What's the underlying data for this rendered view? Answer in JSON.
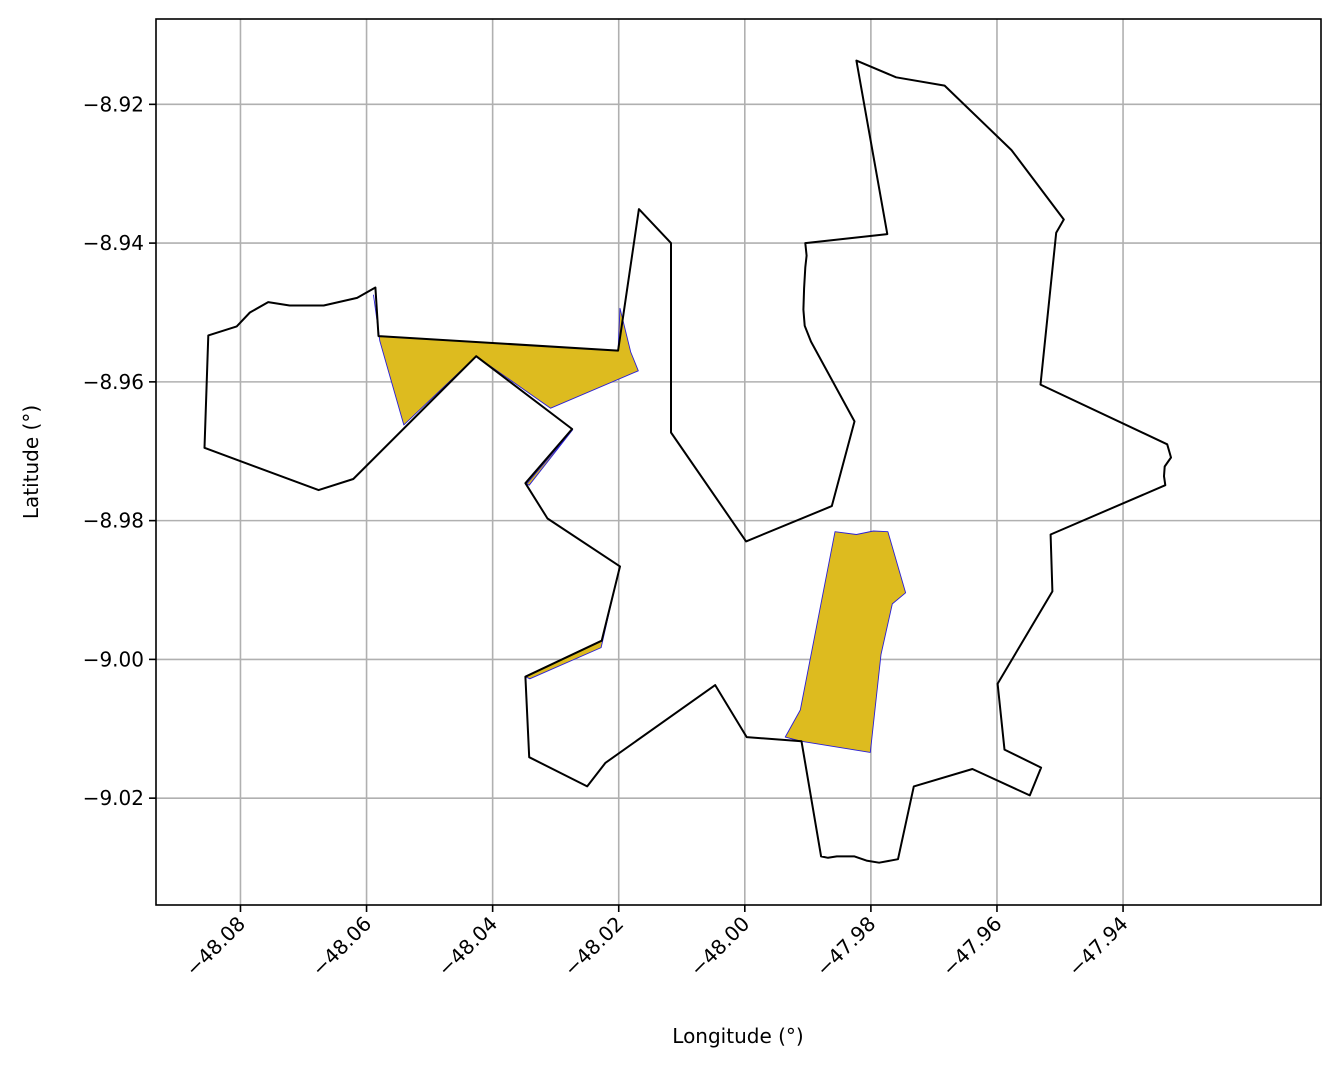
{
  "chart_data": {
    "type": "map",
    "title": "",
    "xlabel": "Longitude (°)",
    "ylabel": "Latitude (°)",
    "xlim": [
      -48.0934,
      -47.9086
    ],
    "ylim": [
      -9.0354,
      -8.9077
    ],
    "grid": true,
    "x_ticks": [
      -48.08,
      -48.06,
      -48.04,
      -48.02,
      -48.0,
      -47.98,
      -47.96,
      -47.94
    ],
    "x_tick_labels": [
      "−48.08",
      "−48.06",
      "−48.04",
      "−48.02",
      "−48.00",
      "−47.98",
      "−47.96",
      "−47.94"
    ],
    "y_ticks": [
      -8.92,
      -8.94,
      -8.96,
      -8.98,
      -9.0,
      -9.02
    ],
    "y_tick_labels": [
      "−8.92",
      "−8.94",
      "−8.96",
      "−8.98",
      "−9.00",
      "−9.02"
    ],
    "colors": {
      "boundary": "#000000",
      "highlight_fill": "#DDBB1F",
      "highlight_edge": "#2a1fd6",
      "grid": "#b0b0b0"
    },
    "boundary": [
      [
        -48.0586,
        -8.9464
      ],
      [
        -48.0581,
        -8.9534
      ],
      [
        -48.0201,
        -8.9555
      ],
      [
        -48.0168,
        -8.9351
      ],
      [
        -48.0117,
        -8.94
      ],
      [
        -48.0117,
        -8.9673
      ],
      [
        -47.9998,
        -8.983
      ],
      [
        -47.9862,
        -8.9779
      ],
      [
        -47.9826,
        -8.9657
      ],
      [
        -47.9895,
        -8.9542
      ],
      [
        -47.9905,
        -8.9519
      ],
      [
        -47.9907,
        -8.9496
      ],
      [
        -47.9906,
        -8.9465
      ],
      [
        -47.9904,
        -8.9435
      ],
      [
        -47.9902,
        -8.9418
      ],
      [
        -47.9904,
        -8.94
      ],
      [
        -47.9774,
        -8.9387
      ],
      [
        -47.9823,
        -8.9137
      ],
      [
        -47.976,
        -8.9161
      ],
      [
        -47.9683,
        -8.9173
      ],
      [
        -47.9577,
        -8.9266
      ],
      [
        -47.9494,
        -8.9366
      ],
      [
        -47.9506,
        -8.9385
      ],
      [
        -47.9531,
        -8.9604
      ],
      [
        -47.933,
        -8.969
      ],
      [
        -47.9324,
        -8.9709
      ],
      [
        -47.9334,
        -8.9722
      ],
      [
        -47.9335,
        -8.9736
      ],
      [
        -47.9333,
        -8.9749
      ],
      [
        -47.9515,
        -8.982
      ],
      [
        -47.9512,
        -8.9902
      ],
      [
        -47.9599,
        -9.0035
      ],
      [
        -47.9588,
        -9.013
      ],
      [
        -47.953,
        -9.0156
      ],
      [
        -47.9548,
        -9.0196
      ],
      [
        -47.9639,
        -9.0158
      ],
      [
        -47.9732,
        -9.0183
      ],
      [
        -47.9757,
        -9.0288
      ],
      [
        -47.9787,
        -9.0293
      ],
      [
        -47.9807,
        -9.029
      ],
      [
        -47.9826,
        -9.0284
      ],
      [
        -47.9854,
        -9.0284
      ],
      [
        -47.9868,
        -9.0286
      ],
      [
        -47.9879,
        -9.0284
      ],
      [
        -47.991,
        -9.0118
      ],
      [
        -47.9997,
        -9.0112
      ],
      [
        -48.0047,
        -9.0037
      ],
      [
        -48.0221,
        -9.0149
      ],
      [
        -48.025,
        -9.0183
      ],
      [
        -48.0342,
        -9.0141
      ],
      [
        -48.0348,
        -9.0025
      ],
      [
        -48.0227,
        -8.9973
      ],
      [
        -48.0198,
        -8.9866
      ],
      [
        -48.0313,
        -8.9797
      ],
      [
        -48.0348,
        -8.9746
      ],
      [
        -48.0274,
        -8.9668
      ],
      [
        -48.0426,
        -8.9563
      ],
      [
        -48.0621,
        -8.974
      ],
      [
        -48.0676,
        -8.9756
      ],
      [
        -48.0857,
        -8.9695
      ],
      [
        -48.0851,
        -8.9533
      ],
      [
        -48.0806,
        -8.952
      ],
      [
        -48.0785,
        -8.95
      ],
      [
        -48.0756,
        -8.9485
      ],
      [
        -48.0722,
        -8.949
      ],
      [
        -48.0668,
        -8.949
      ],
      [
        -48.0615,
        -8.9479
      ],
      [
        -48.0586,
        -8.9464
      ]
    ],
    "highlighted_regions": [
      [
        [
          -48.0589,
          -8.9475
        ],
        [
          -48.058,
          -8.9534
        ],
        [
          -48.0201,
          -8.9555
        ],
        [
          -48.0198,
          -8.9494
        ],
        [
          -48.0181,
          -8.9557
        ],
        [
          -48.0169,
          -8.9584
        ],
        [
          -48.0308,
          -8.9638
        ],
        [
          -48.0426,
          -8.9563
        ],
        [
          -48.0541,
          -8.9662
        ],
        [
          -48.0579,
          -8.9541
        ],
        [
          -48.0589,
          -8.9475
        ]
      ],
      [
        [
          -48.0199,
          -8.9868
        ],
        [
          -48.0227,
          -8.9973
        ],
        [
          -48.0348,
          -9.0025
        ],
        [
          -48.0341,
          -9.0028
        ],
        [
          -48.0228,
          -8.9983
        ],
        [
          -48.0199,
          -8.9868
        ]
      ],
      [
        [
          -48.0346,
          -8.9747
        ],
        [
          -48.0342,
          -8.9749
        ],
        [
          -48.0273,
          -8.9669
        ],
        [
          -48.0346,
          -8.9747
        ]
      ],
      [
        [
          -47.9857,
          -8.9816
        ],
        [
          -47.9823,
          -8.982
        ],
        [
          -47.9796,
          -8.9815
        ],
        [
          -47.9773,
          -8.9816
        ],
        [
          -47.9745,
          -8.9904
        ],
        [
          -47.9766,
          -8.992
        ],
        [
          -47.9784,
          -8.9993
        ],
        [
          -47.9801,
          -9.0134
        ],
        [
          -47.991,
          -9.0118
        ],
        [
          -47.9936,
          -9.0112
        ],
        [
          -47.9912,
          -9.0073
        ],
        [
          -47.9857,
          -8.9816
        ]
      ]
    ]
  }
}
